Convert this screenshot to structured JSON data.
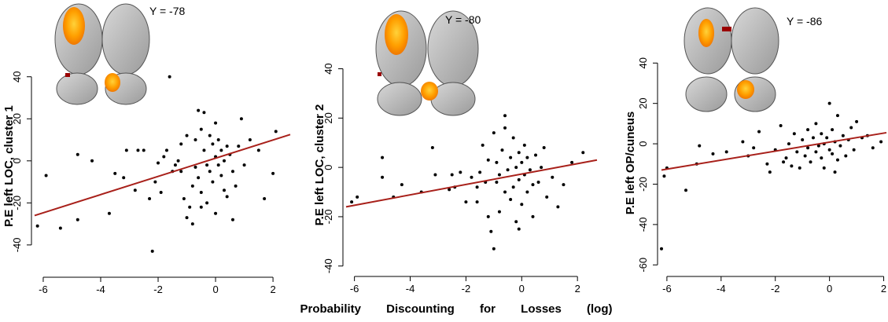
{
  "xlabel": "Probability Discounting for Losses (log)",
  "chart_data": [
    {
      "type": "scatter",
      "annotation": "Y = -78",
      "ylabel": "P.E left LOC, cluster 1",
      "color": "#000000",
      "xlim": [
        -6.3,
        2.6
      ],
      "ylim": [
        -52,
        47
      ],
      "xticks": [
        -6,
        -4,
        -2,
        0,
        2
      ],
      "yticks": [
        -40,
        -20,
        0,
        20,
        40
      ],
      "x": [
        -6.2,
        -5.9,
        -5.4,
        -4.8,
        -4.8,
        -4.3,
        -3.7,
        -3.5,
        -3.2,
        -3.1,
        -2.8,
        -2.7,
        -2.5,
        -2.2,
        -2.1,
        -2,
        -1.9,
        -1.7,
        -1.6,
        -1.5,
        -1.4,
        -1.3,
        -1.2,
        -1.1,
        -1,
        -0.9,
        -0.8,
        -0.8,
        -0.7,
        -0.7,
        -0.6,
        -0.6,
        -0.5,
        -0.5,
        -0.4,
        -0.4,
        -0.3,
        -0.3,
        -0.2,
        -0.2,
        -0.1,
        -0.1,
        0,
        0,
        0,
        0.1,
        0.1,
        0.2,
        0.2,
        0.3,
        0.3,
        0.4,
        0.5,
        0.6,
        0.7,
        0.8,
        0.9,
        1,
        1.2,
        1.5,
        1.7,
        2,
        2.1,
        -1,
        -1.2,
        -0.5,
        0.4,
        -2.3,
        -1.8,
        0.6
      ],
      "y": [
        -31,
        -7,
        -32,
        3,
        -28,
        0,
        -25,
        -6,
        -8,
        5,
        -14,
        5,
        5,
        -43,
        -10,
        -1,
        -15,
        5,
        40,
        -5,
        -2,
        0,
        -5,
        -18,
        -27,
        -22,
        -30,
        -12,
        10,
        -3,
        24,
        -8,
        15,
        -15,
        23,
        5,
        -2,
        -20,
        12,
        -5,
        8,
        -10,
        2,
        18,
        -25,
        -2,
        10,
        -7,
        5,
        -14,
        0,
        -17,
        3,
        -5,
        -12,
        7,
        20,
        -2,
        10,
        5,
        -18,
        -6,
        14,
        12,
        8,
        -22,
        7,
        -18,
        2,
        -28
      ],
      "fit": {
        "x": [
          -6.3,
          2.6
        ],
        "y": [
          -26,
          12.5
        ],
        "color": "#a8201a"
      }
    },
    {
      "type": "scatter",
      "annotation": "Y = -80",
      "ylabel": "P.E left LOC, cluster 2",
      "color": "#000000",
      "xlim": [
        -6.3,
        2.7
      ],
      "ylim": [
        -42,
        44
      ],
      "xticks": [
        -6,
        -4,
        -2,
        0,
        2
      ],
      "yticks": [
        -40,
        -20,
        0,
        20,
        40
      ],
      "x": [
        -6.1,
        -5.9,
        -5,
        -5,
        -4.6,
        -4.3,
        -3.6,
        -3.2,
        -3.1,
        -2.6,
        -2.4,
        -2.2,
        -2,
        -1.8,
        -1.6,
        -1.5,
        -1.4,
        -1.2,
        -1.2,
        -1.1,
        -1,
        -1,
        -0.9,
        -0.9,
        -0.8,
        -0.8,
        -0.7,
        -0.6,
        -0.6,
        -0.5,
        -0.4,
        -0.4,
        -0.3,
        -0.3,
        -0.2,
        -0.2,
        -0.1,
        -0.1,
        0,
        0,
        0.1,
        0.1,
        0.2,
        0.2,
        0.3,
        0.4,
        0.5,
        0.6,
        0.7,
        0.9,
        1.1,
        1.3,
        1.5,
        1.8,
        2.2,
        -0.6,
        -1.6,
        -2.5,
        -0.1,
        0.4,
        -1.3,
        0.8
      ],
      "y": [
        -14,
        -12,
        -4,
        4,
        -12,
        -7,
        -10,
        8,
        -3,
        -9,
        -8,
        -2,
        -14,
        -4,
        -8,
        -2,
        9,
        -20,
        3,
        -26,
        -33,
        14,
        -6,
        2,
        -3,
        -18,
        7,
        -10,
        16,
        -1,
        -13,
        4,
        -8,
        12,
        0,
        -22,
        -5,
        6,
        -15,
        2,
        -3,
        9,
        -10,
        4,
        -1,
        -7,
        5,
        -6,
        0,
        -12,
        -4,
        -16,
        -7,
        2,
        6,
        21,
        -14,
        -3,
        -25,
        -20,
        -6,
        8
      ],
      "fit": {
        "x": [
          -6.3,
          2.7
        ],
        "y": [
          -16,
          3
        ],
        "color": "#a8201a"
      }
    },
    {
      "type": "scatter",
      "annotation": "Y = -86",
      "ylabel": "P.E left OP/cuneus",
      "color": "#000000",
      "xlim": [
        -6.2,
        2.1
      ],
      "ylim": [
        -63,
        44
      ],
      "xticks": [
        -6,
        -4,
        -2,
        0,
        2
      ],
      "yticks": [
        -60,
        -40,
        -20,
        0,
        20,
        40
      ],
      "x": [
        -6.2,
        -6.1,
        -6,
        -5.3,
        -4.9,
        -4.8,
        -4.3,
        -3.8,
        -3.2,
        -3,
        -2.8,
        -2.6,
        -2.3,
        -2,
        -1.8,
        -1.6,
        -1.5,
        -1.4,
        -1.3,
        -1.2,
        -1.1,
        -1,
        -0.9,
        -0.8,
        -0.8,
        -0.7,
        -0.6,
        -0.5,
        -0.5,
        -0.4,
        -0.3,
        -0.3,
        -0.2,
        -0.2,
        -0.1,
        0,
        0,
        0.1,
        0.1,
        0.2,
        0.3,
        0.3,
        0.4,
        0.5,
        0.6,
        0.7,
        0.8,
        0.9,
        1,
        1.2,
        1.4,
        1.6,
        1.9,
        -2.2,
        -1.7,
        0.2
      ],
      "y": [
        -52,
        -16,
        -12,
        -23,
        -10,
        -1,
        -5,
        -4,
        1,
        -6,
        -2,
        6,
        -10,
        -3,
        9,
        -7,
        0,
        -11,
        5,
        -4,
        -12,
        2,
        -6,
        7,
        -2,
        -9,
        3,
        -4,
        10,
        -1,
        -7,
        5,
        0,
        -12,
        3,
        -3,
        20,
        7,
        -5,
        1,
        -8,
        14,
        -1,
        4,
        -6,
        2,
        8,
        -3,
        11,
        3,
        4,
        -2,
        1,
        -14,
        -9,
        -14
      ],
      "fit": {
        "x": [
          -6.2,
          2.1
        ],
        "y": [
          -13,
          5.5
        ],
        "color": "#a8201a"
      }
    }
  ]
}
